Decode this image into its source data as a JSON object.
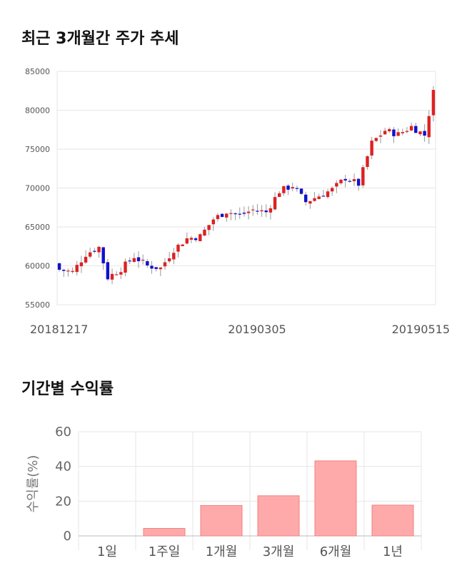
{
  "sections": {
    "price_title": "최근 3개월간 주가 추세",
    "return_title": "기간별 수익률"
  },
  "colors": {
    "up": "#dd2222",
    "down": "#1111cc",
    "wick": "#999999",
    "bar_fill": "#ffaaaa",
    "bar_stroke": "#f08080",
    "grid": "#e6e6e6"
  },
  "chart_data": [
    {
      "type": "candlestick",
      "title": "최근 3개월간 주가 추세",
      "ylim": [
        55000,
        85000
      ],
      "y_ticks": [
        55000,
        60000,
        65000,
        70000,
        75000,
        80000,
        85000
      ],
      "x_tick_labels": [
        "20181217",
        "20190305",
        "20190515"
      ],
      "grid": true,
      "close_points": [
        [
          0,
          59500
        ],
        [
          3,
          59200
        ],
        [
          6,
          61500
        ],
        [
          9,
          62400
        ],
        [
          11,
          58500
        ],
        [
          14,
          59600
        ],
        [
          17,
          61200
        ],
        [
          20,
          60000
        ],
        [
          23,
          59700
        ],
        [
          26,
          62100
        ],
        [
          29,
          63500
        ],
        [
          32,
          63800
        ],
        [
          35,
          66000
        ],
        [
          38,
          67000
        ],
        [
          41,
          66500
        ],
        [
          44,
          67200
        ],
        [
          47,
          66900
        ],
        [
          50,
          69600
        ],
        [
          53,
          70300
        ],
        [
          56,
          68200
        ],
        [
          59,
          69000
        ],
        [
          62,
          69800
        ],
        [
          65,
          71300
        ],
        [
          68,
          70500
        ],
        [
          71,
          75800
        ],
        [
          74,
          77400
        ],
        [
          77,
          76900
        ],
        [
          80,
          77900
        ],
        [
          83,
          76800
        ],
        [
          85,
          82300
        ]
      ]
    },
    {
      "type": "bar",
      "categories": [
        "1일",
        "1주일",
        "1개월",
        "3개월",
        "6개월",
        "1년"
      ],
      "values": [
        0,
        4.3,
        17.5,
        23.1,
        43.2,
        17.7
      ],
      "ylabel": "수익률(%)",
      "ylim": [
        0,
        60
      ],
      "y_ticks": [
        0,
        20,
        40,
        60
      ],
      "grid": true
    }
  ]
}
